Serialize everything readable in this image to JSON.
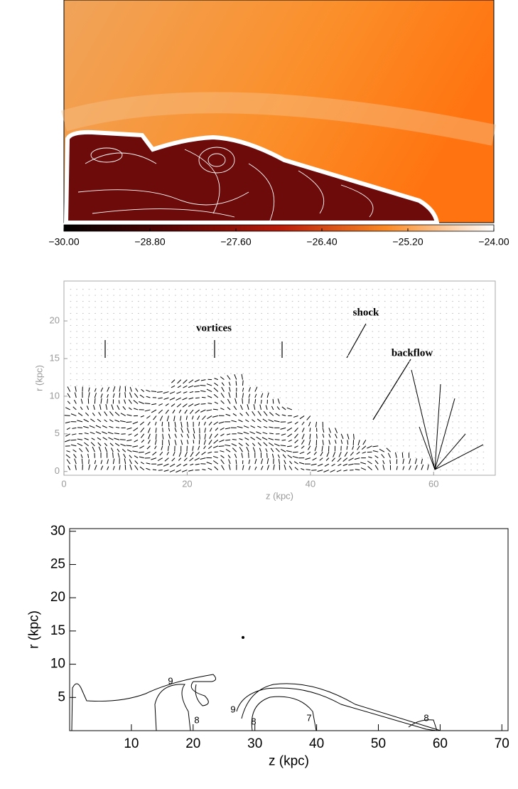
{
  "chart_data": [
    {
      "type": "heatmap",
      "colorbar_lim": [
        -30,
        -24
      ],
      "colorbar_ticks": [
        {
          "value": -30,
          "label": "−30.00"
        },
        {
          "value": -28.8,
          "label": "−28.80"
        },
        {
          "value": -27.6,
          "label": "−27.60"
        },
        {
          "value": -26.4,
          "label": "−26.40"
        },
        {
          "value": -25.2,
          "label": "−25.20"
        },
        {
          "value": -24,
          "label": "−24.00"
        }
      ]
    },
    {
      "type": "quiver",
      "xlabel": "z (kpc)",
      "ylabel": "r (kpc)",
      "xlim": [
        0,
        70
      ],
      "ylim": [
        -0.5,
        25.3
      ],
      "xticks": [
        0,
        20,
        40,
        60
      ],
      "yticks": [
        0,
        5,
        10,
        15,
        20
      ],
      "annotations": [
        "vortices",
        "shock",
        "backflow"
      ]
    },
    {
      "type": "contour",
      "xlabel": "z (kpc)",
      "ylabel": "r (kpc)",
      "xlim": [
        0,
        71
      ],
      "ylim": [
        0,
        30.4
      ],
      "xticks": [
        10,
        20,
        30,
        40,
        50,
        60,
        70
      ],
      "yticks": [
        5,
        10,
        15,
        20,
        25,
        30
      ],
      "contour_labels": [
        9,
        9,
        8,
        8,
        7,
        8
      ]
    }
  ]
}
